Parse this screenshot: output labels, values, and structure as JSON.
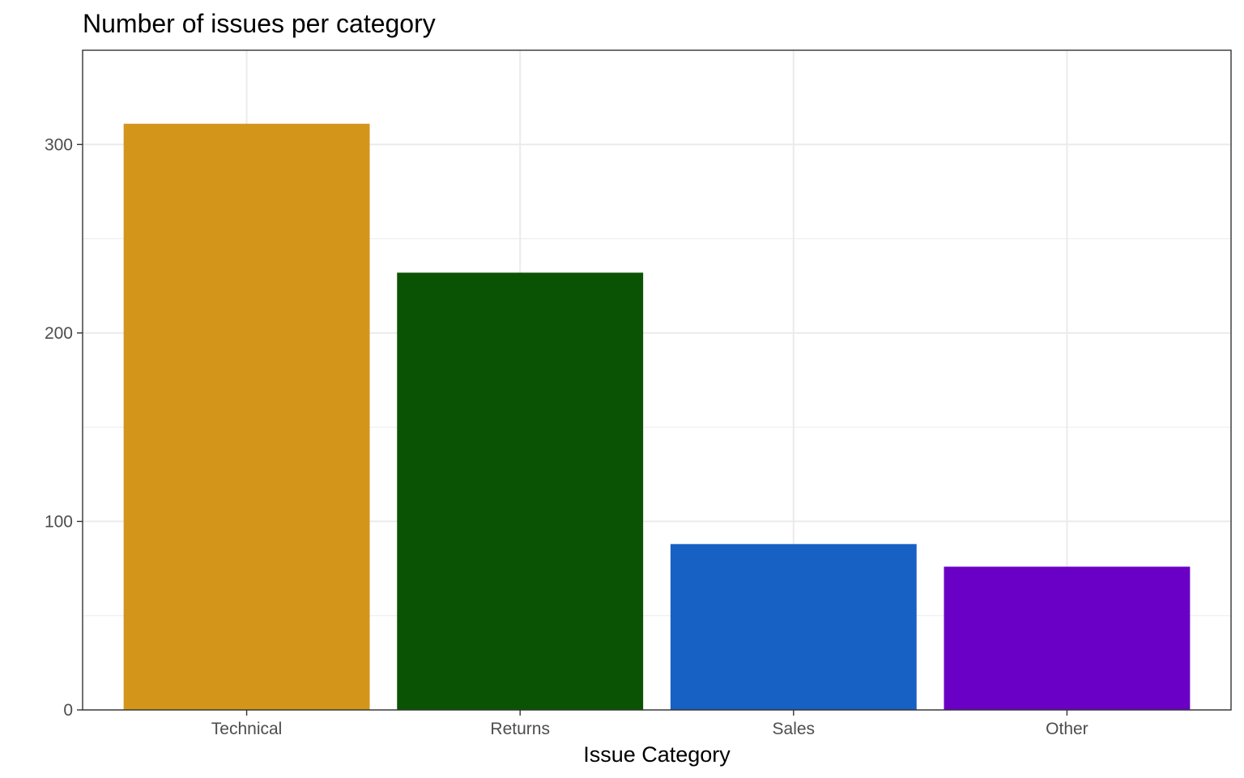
{
  "chart_data": {
    "type": "bar",
    "title": "Number of issues per category",
    "xlabel": "Issue Category",
    "ylabel": "",
    "categories": [
      "Technical",
      "Returns",
      "Sales",
      "Other"
    ],
    "values": [
      311,
      232,
      88,
      76
    ],
    "colors": [
      "#D4951B",
      "#0B5304",
      "#1760C4",
      "#6A00C6"
    ],
    "ylim": [
      0,
      350
    ],
    "yticks": [
      0,
      100,
      200,
      300
    ],
    "grid": true,
    "legend": "none"
  }
}
